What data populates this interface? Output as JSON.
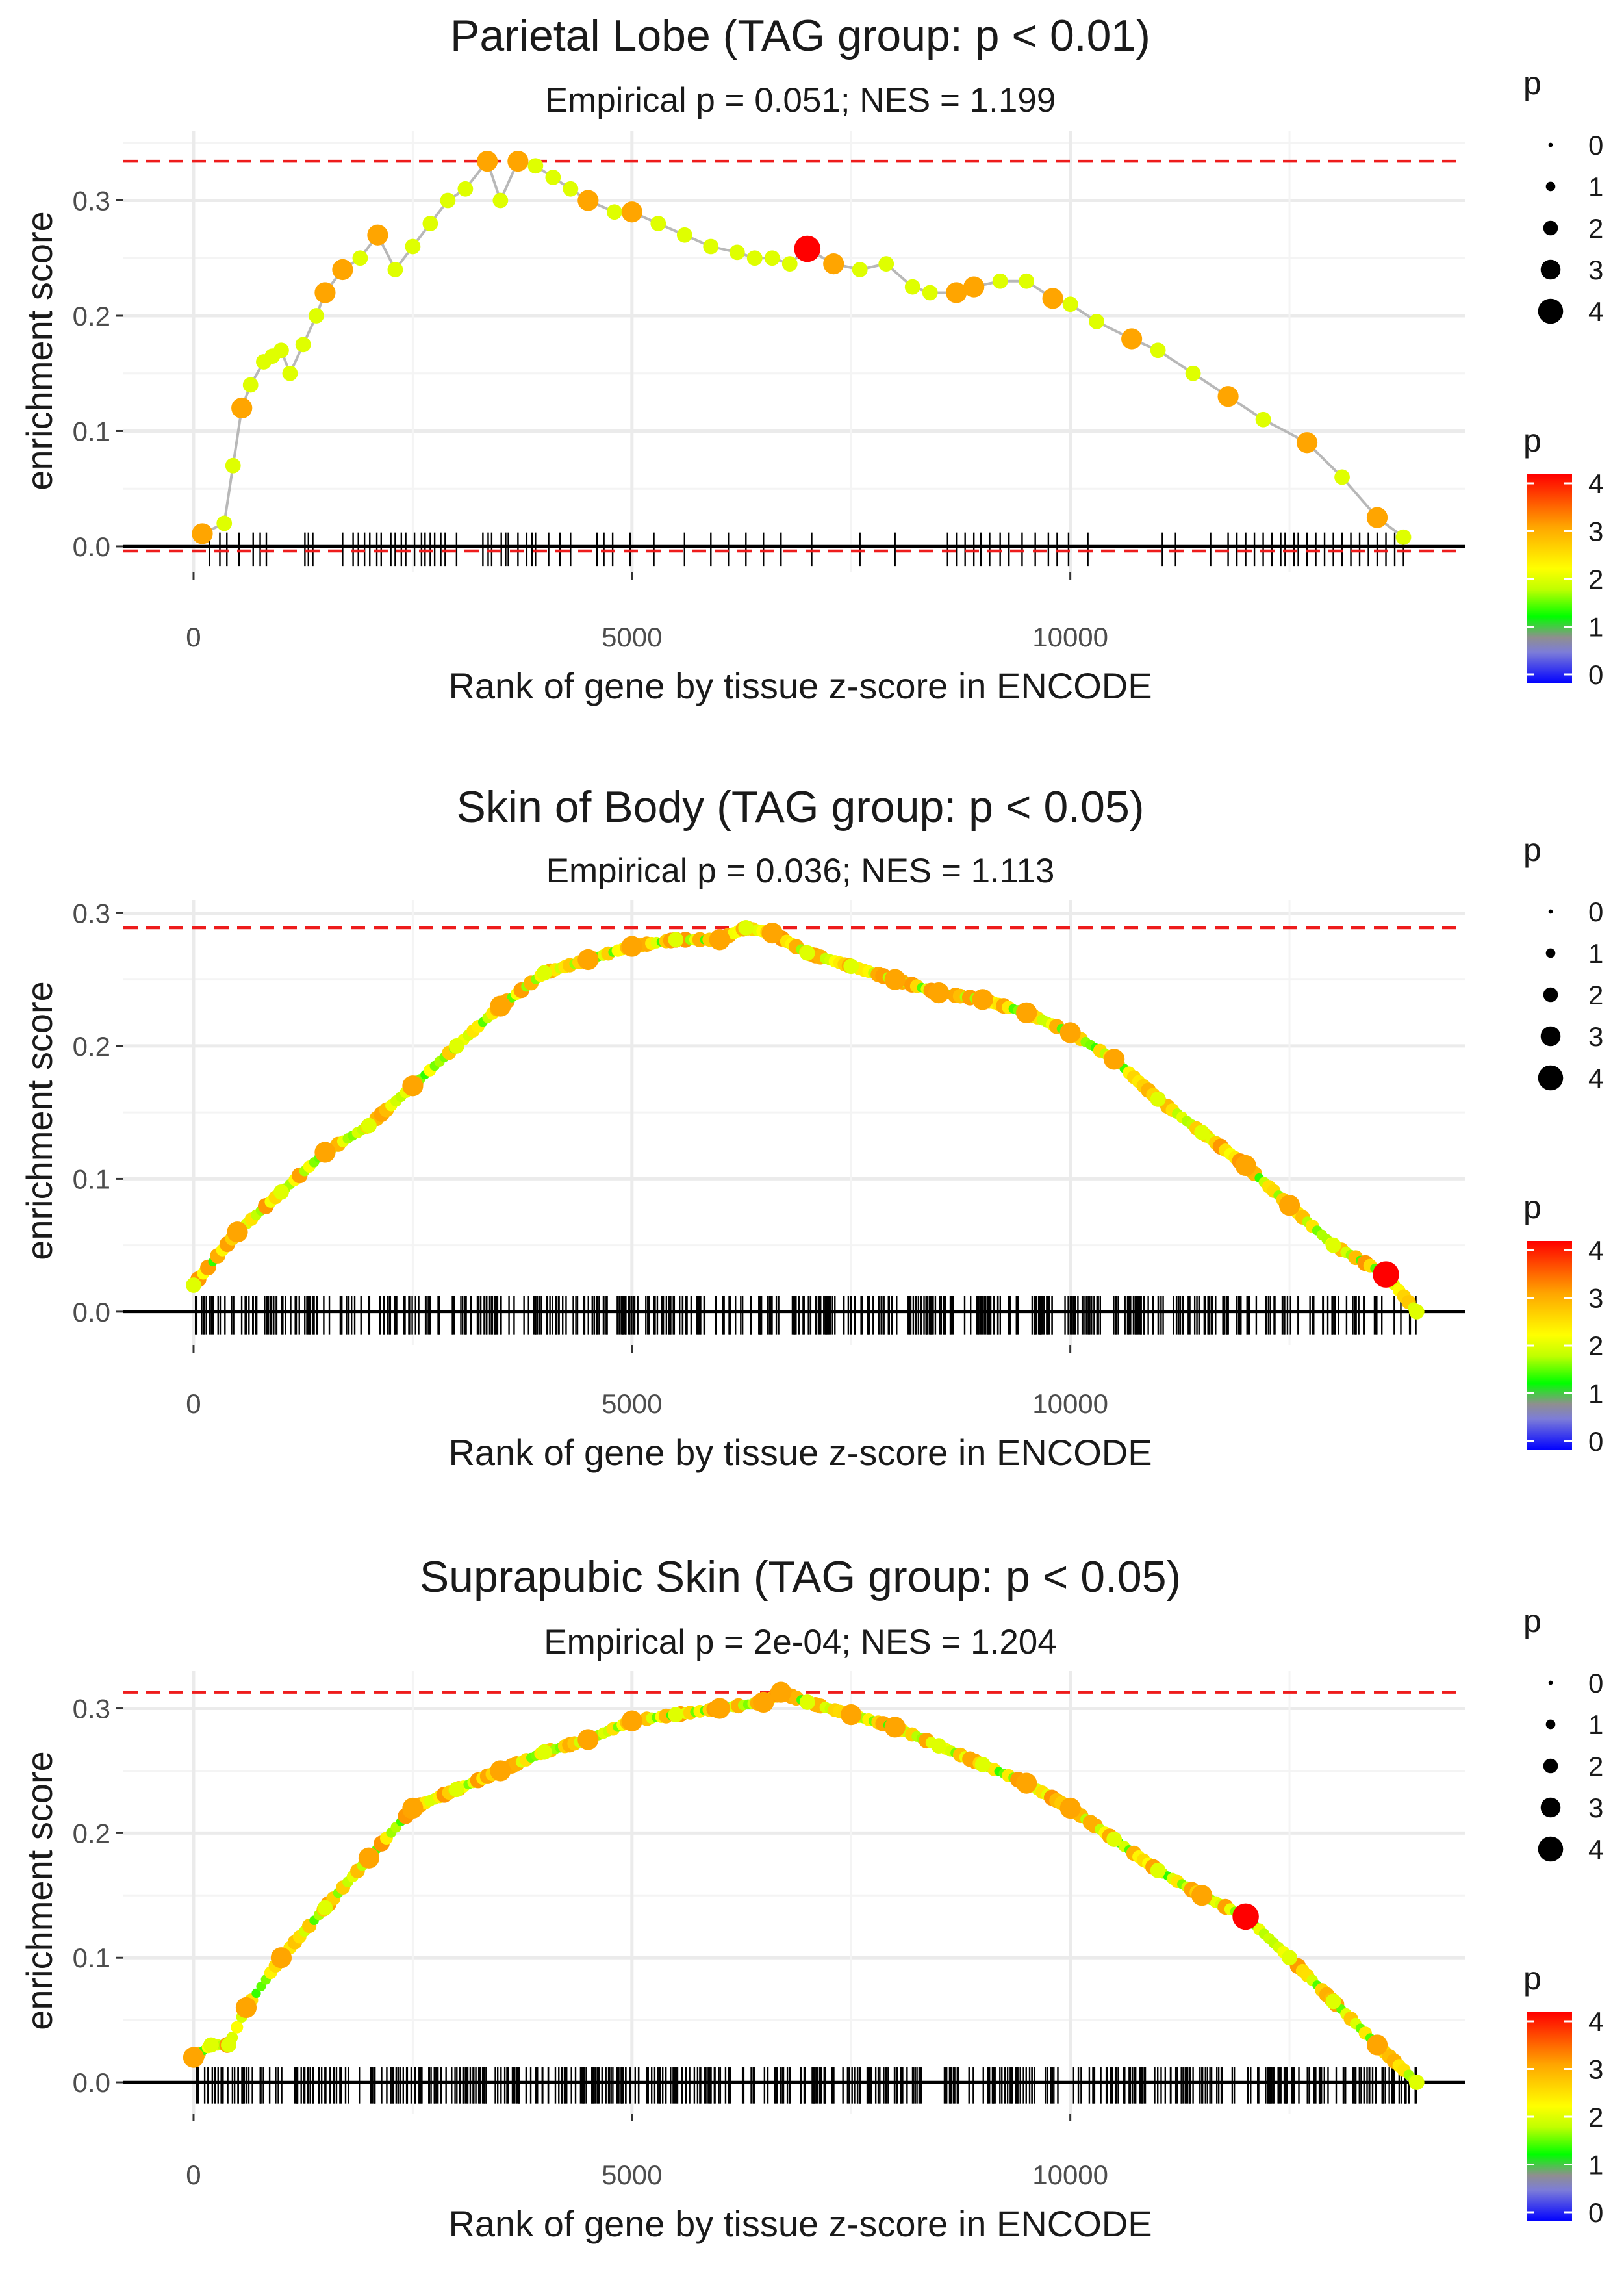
{
  "chart_data": [
    {
      "type": "line",
      "title": "Parietal Lobe (TAG group: p < 0.01)",
      "subtitle": "Empirical p = 0.051; NES = 1.199",
      "xlabel": "Rank of gene by tissue z-score in ENCODE",
      "ylabel": "enrichment score",
      "xlim": [
        -800,
        14500
      ],
      "ylim": [
        -0.022,
        0.36
      ],
      "xticks": [
        0,
        5000,
        10000
      ],
      "xtick_labels": [
        "0",
        "5000",
        "10000"
      ],
      "yticks": [
        0.0,
        0.1,
        0.2,
        0.3
      ],
      "ytick_labels": [
        "0.0",
        "0.1",
        "0.2",
        "0.3"
      ],
      "max_es": 0.334,
      "min_es": -0.004,
      "x": [
        100,
        350,
        450,
        550,
        650,
        800,
        900,
        1000,
        1100,
        1250,
        1400,
        1500,
        1700,
        1900,
        2100,
        2300,
        2500,
        2700,
        2900,
        3100,
        3350,
        3500,
        3700,
        3900,
        4100,
        4300,
        4500,
        4800,
        5000,
        5300,
        5600,
        5900,
        6200,
        6400,
        6600,
        6800,
        7000,
        7300,
        7600,
        7900,
        8200,
        8400,
        8700,
        8900,
        9200,
        9500,
        9800,
        10000,
        10300,
        10700,
        11000,
        11400,
        11800,
        12200,
        12700,
        13100,
        13500,
        13800
      ],
      "values": [
        0.011,
        0.02,
        0.07,
        0.12,
        0.14,
        0.16,
        0.165,
        0.17,
        0.15,
        0.175,
        0.2,
        0.22,
        0.24,
        0.25,
        0.27,
        0.24,
        0.26,
        0.28,
        0.3,
        0.31,
        0.334,
        0.3,
        0.334,
        0.33,
        0.32,
        0.31,
        0.3,
        0.29,
        0.29,
        0.28,
        0.27,
        0.26,
        0.255,
        0.25,
        0.25,
        0.245,
        0.258,
        0.245,
        0.24,
        0.245,
        0.225,
        0.22,
        0.22,
        0.225,
        0.23,
        0.23,
        0.215,
        0.21,
        0.195,
        0.18,
        0.17,
        0.15,
        0.13,
        0.11,
        0.09,
        0.06,
        0.025,
        0.008
      ],
      "point_p": [
        3,
        2,
        2,
        3,
        2,
        2,
        2,
        2,
        2,
        2,
        2,
        3,
        3,
        2,
        3,
        2,
        2,
        2,
        2,
        2,
        3,
        2,
        3,
        2,
        2,
        2,
        3,
        2,
        3,
        2,
        2,
        2,
        2,
        2,
        2,
        2,
        4,
        3,
        2,
        2,
        2,
        2,
        3,
        3,
        2,
        2,
        3,
        2,
        2,
        3,
        2,
        2,
        3,
        2,
        3,
        2,
        3,
        2
      ],
      "gene_ranks": [
        180,
        300,
        380,
        520,
        680,
        760,
        830,
        1270,
        1310,
        1360,
        1700,
        1820,
        1880,
        1950,
        2010,
        2090,
        2140,
        2250,
        2300,
        2370,
        2420,
        2520,
        2600,
        2640,
        2700,
        2750,
        2820,
        2870,
        3000,
        3300,
        3360,
        3400,
        3510,
        3560,
        3590,
        3700,
        3800,
        3860,
        3900,
        4050,
        4180,
        4300,
        4600,
        4680,
        4780,
        4980,
        5250,
        5600,
        5900,
        6100,
        6300,
        6500,
        6700,
        7050,
        7600,
        8000,
        8600,
        8700,
        8800,
        8900,
        8980,
        9080,
        9200,
        9300,
        9450,
        9600,
        9750,
        9850,
        9980,
        10200,
        11050,
        11200,
        11600,
        11800,
        11900,
        12000,
        12100,
        12200,
        12300,
        12400,
        12450,
        12550,
        12600,
        12700,
        12800,
        12900,
        13000,
        13100,
        13200,
        13300,
        13400,
        13500,
        13600,
        13700,
        13800
      ]
    },
    {
      "type": "line",
      "title": "Skin of Body (TAG group: p < 0.05)",
      "subtitle": "Empirical p = 0.036; NES = 1.113",
      "xlabel": "Rank of gene by tissue z-score in ENCODE",
      "ylabel": "enrichment score",
      "xlim": [
        -800,
        14500
      ],
      "ylim": [
        -0.025,
        0.31
      ],
      "xticks": [
        0,
        5000,
        10000
      ],
      "xtick_labels": [
        "0",
        "5000",
        "10000"
      ],
      "yticks": [
        0.0,
        0.1,
        0.2,
        0.3
      ],
      "ytick_labels": [
        "0.0",
        "0.1",
        "0.2",
        "0.3"
      ],
      "max_es": 0.289,
      "x": [
        0,
        500,
        1000,
        1500,
        2000,
        2500,
        3000,
        3500,
        4000,
        4500,
        5000,
        5500,
        6000,
        6300,
        6600,
        7000,
        7500,
        8000,
        8500,
        9000,
        9500,
        10000,
        10500,
        11000,
        11500,
        12000,
        12500,
        13000,
        13600,
        13950
      ],
      "values": [
        0.02,
        0.06,
        0.09,
        0.12,
        0.14,
        0.17,
        0.2,
        0.23,
        0.255,
        0.265,
        0.275,
        0.28,
        0.28,
        0.289,
        0.285,
        0.27,
        0.26,
        0.25,
        0.24,
        0.235,
        0.225,
        0.21,
        0.19,
        0.16,
        0.135,
        0.11,
        0.08,
        0.05,
        0.028,
        0.0
      ],
      "point_p": [
        2,
        3,
        2,
        3,
        2,
        3,
        2,
        3,
        2,
        3,
        3,
        2,
        3,
        2,
        3,
        2,
        2,
        3,
        3,
        3,
        3,
        3,
        3,
        2,
        2,
        3,
        3,
        2,
        4,
        2
      ],
      "gene_density": "dense"
    },
    {
      "type": "line",
      "title": "Suprapubic Skin (TAG group: p < 0.05)",
      "subtitle": "Empirical p = 2e-04; NES = 1.204",
      "xlabel": "Rank of gene by tissue z-score in ENCODE",
      "ylabel": "enrichment score",
      "xlim": [
        -800,
        14500
      ],
      "ylim": [
        -0.025,
        0.33
      ],
      "xticks": [
        0,
        5000,
        10000
      ],
      "xtick_labels": [
        "0",
        "5000",
        "10000"
      ],
      "yticks": [
        0.0,
        0.1,
        0.2,
        0.3
      ],
      "ytick_labels": [
        "0.0",
        "0.1",
        "0.2",
        "0.3"
      ],
      "max_es": 0.313,
      "x": [
        0,
        200,
        400,
        600,
        1000,
        1500,
        2000,
        2500,
        3000,
        3500,
        4000,
        4500,
        5000,
        5500,
        6000,
        6500,
        6700,
        7000,
        7500,
        8000,
        8500,
        9000,
        9500,
        10000,
        10500,
        11000,
        11500,
        12000,
        12500,
        13000,
        13500,
        13950
      ],
      "values": [
        0.02,
        0.03,
        0.03,
        0.06,
        0.1,
        0.14,
        0.18,
        0.22,
        0.235,
        0.25,
        0.265,
        0.275,
        0.29,
        0.295,
        0.3,
        0.305,
        0.313,
        0.305,
        0.295,
        0.285,
        0.27,
        0.255,
        0.24,
        0.22,
        0.195,
        0.17,
        0.15,
        0.133,
        0.1,
        0.065,
        0.03,
        0.0
      ],
      "point_p": [
        3,
        2,
        2,
        3,
        3,
        2,
        3,
        3,
        2,
        3,
        2,
        3,
        3,
        2,
        3,
        3,
        3,
        2,
        3,
        3,
        2,
        2,
        3,
        3,
        2,
        2,
        3,
        4,
        2,
        2,
        3,
        2
      ],
      "gene_density": "dense"
    }
  ],
  "legend": {
    "size_title": "p",
    "size_labels": [
      "0",
      "1",
      "2",
      "3",
      "4"
    ],
    "color_title": "p",
    "color_labels": [
      "4",
      "3",
      "2",
      "1",
      "0"
    ]
  },
  "colors": {
    "threshold_line": "#ee1c1c",
    "es_line": "#b8b8b8",
    "grid": "#ebebeb",
    "gradient": [
      "#0000ff",
      "#7d7dd8",
      "#8f8f8f",
      "#00ff00",
      "#c0ff00",
      "#ffff00",
      "#ffa500",
      "#ff0000"
    ]
  }
}
